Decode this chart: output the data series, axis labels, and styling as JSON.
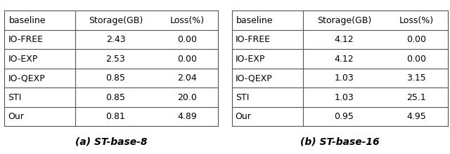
{
  "table_a": {
    "caption": "(a) ST-base-8",
    "headers": [
      "baseline",
      "Storage(GB)",
      "Loss(%)"
    ],
    "rows": [
      [
        "IO-FREE",
        "2.43",
        "0.00"
      ],
      [
        "IO-EXP",
        "2.53",
        "0.00"
      ],
      [
        "IO-QEXP",
        "0.85",
        "2.04"
      ],
      [
        "STI",
        "0.85",
        "20.0"
      ],
      [
        "Our",
        "0.81",
        "4.89"
      ]
    ]
  },
  "table_b": {
    "caption": "(b) ST-base-16",
    "headers": [
      "baseline",
      "Storage(GB)",
      "Loss(%)"
    ],
    "rows": [
      [
        "IO-FREE",
        "4.12",
        "0.00"
      ],
      [
        "IO-EXP",
        "4.12",
        "0.00"
      ],
      [
        "IO-QEXP",
        "1.03",
        "3.15"
      ],
      [
        "STI",
        "1.03",
        "25.1"
      ],
      [
        "Our",
        "0.95",
        "4.95"
      ]
    ]
  },
  "bg_color": "#ffffff",
  "line_color": "#555555",
  "text_color": "#000000",
  "header_fontsize": 9.0,
  "cell_fontsize": 9.0,
  "caption_fontsize": 10.0
}
